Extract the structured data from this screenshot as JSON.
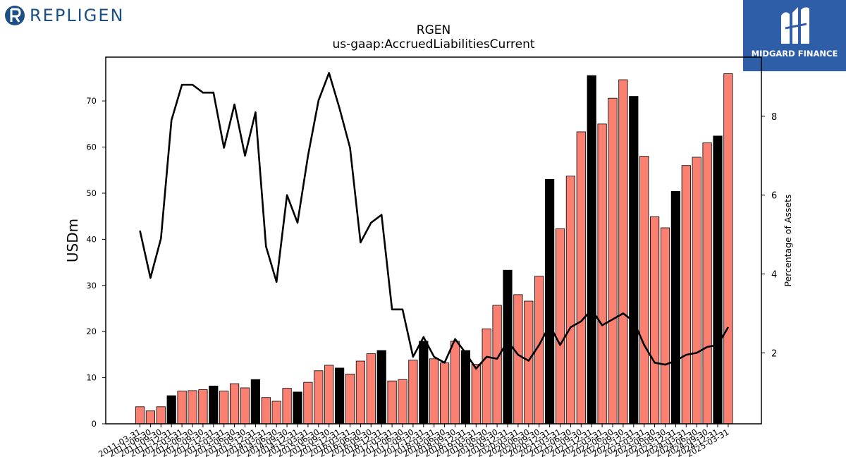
{
  "logos": {
    "left_text": "REPLIGEN",
    "right_text": "MIDGARD FINANCE"
  },
  "chart_data": {
    "type": "bar",
    "title": "RGEN",
    "subtitle": "us-gaap:AccruedLiabilitiesCurrent",
    "ylabel": "USDm",
    "y2label": "Percentage of Assets",
    "ylim": [
      0,
      79.5
    ],
    "y2lim": [
      0.2,
      9.5
    ],
    "yticks": [
      0,
      10,
      20,
      30,
      40,
      50,
      60,
      70
    ],
    "y2ticks": [
      2,
      4,
      6,
      8
    ],
    "colors": {
      "bar": "#fa8072",
      "bar_highlight": "#000000",
      "line": "#000000"
    },
    "categories": [
      "2011-03-31",
      "2011-06-30",
      "2011-09-30",
      "2011-12-31",
      "2012-03-31",
      "2012-06-30",
      "2012-09-30",
      "2012-12-31",
      "2013-03-31",
      "2013-06-30",
      "2013-09-30",
      "2013-12-31",
      "2014-03-31",
      "2014-06-30",
      "2014-09-30",
      "2014-12-31",
      "2015-03-31",
      "2015-06-30",
      "2015-09-30",
      "2015-12-31",
      "2016-03-31",
      "2016-06-30",
      "2016-09-30",
      "2016-12-31",
      "2017-03-31",
      "2017-06-30",
      "2017-09-30",
      "2017-12-31",
      "2018-03-31",
      "2018-06-30",
      "2018-09-30",
      "2018-12-31",
      "2019-03-31",
      "2019-06-30",
      "2019-09-30",
      "2019-12-31",
      "2020-03-31",
      "2020-06-30",
      "2020-09-30",
      "2020-12-31",
      "2021-03-31",
      "2021-06-30",
      "2021-09-30",
      "2021-12-31",
      "2022-03-31",
      "2022-06-30",
      "2022-09-30",
      "2022-12-31",
      "2023-03-31",
      "2023-06-30",
      "2023-09-30",
      "2023-12-31",
      "2024-03-31",
      "2024-06-30",
      "2024-09-30",
      "2024-12-31",
      "2025-03-31"
    ],
    "tick_labels": [
      "2011-03-31",
      "2011-06-30",
      "2011-09-30",
      "2011-12-31",
      "2012-03-31",
      "2012-06-30",
      "2012-09-30",
      "2012-12-31",
      "2013-03-31",
      "2013-06-30",
      "2013-09-30",
      "2013-12-31",
      "2014-03-31",
      "2014-06-30",
      "2014-09-30",
      "2014-12-31",
      "2015-03-31",
      "2015-06-30",
      "2015-09-30",
      "2015-12-31",
      "2016-03-31",
      "2016-06-30",
      "2016-09-30",
      "2016-12-31",
      "2017-03-31",
      "2017-06-30",
      "2017-09-30",
      "2017-12-31",
      "2018-03-31",
      "2018-06-30",
      "2018-09-30",
      "2018-12-31",
      "2019-03-31",
      "2019-06-30",
      "2019-09-30",
      "2019-12-31",
      "2020-03-31",
      "2020-06-30",
      "2020-09-30",
      "2020-12-31",
      "2021-03-31",
      "2021-06-30",
      "2021-09-30",
      "2021-12-31",
      "2022-03-31",
      "2022-06-30",
      "2022-09-30",
      "2022-12-31",
      "2023-03-31",
      "2023-06-30",
      "2023-09-30",
      "2023-12-31",
      "2024-03-31",
      "2024-06-30",
      "2024-09-30",
      "2024-12-31",
      "2025-03-31"
    ],
    "series": [
      {
        "name": "AccruedLiabilitiesCurrent (USDm)",
        "type": "bar",
        "values": [
          3.7,
          2.8,
          3.7,
          6.1,
          7.1,
          7.2,
          7.4,
          8.2,
          7.1,
          8.7,
          7.8,
          9.6,
          5.7,
          4.9,
          7.7,
          6.9,
          9.0,
          11.5,
          12.7,
          12.1,
          10.8,
          13.6,
          15.2,
          15.9,
          9.3,
          9.6,
          13.8,
          17.9,
          14.1,
          13.2,
          17.9,
          15.9,
          12.9,
          20.6,
          25.7,
          33.3,
          28.0,
          26.6,
          32.0,
          53.0,
          42.3,
          53.7,
          63.3,
          75.5,
          65.0,
          70.6,
          74.6,
          71.0,
          58.0,
          44.9,
          42.5,
          50.4,
          56.0,
          57.8,
          60.9,
          62.4,
          75.9
        ],
        "highlight": [
          false,
          false,
          false,
          true,
          false,
          false,
          false,
          true,
          false,
          false,
          false,
          true,
          false,
          false,
          false,
          true,
          false,
          false,
          false,
          true,
          false,
          false,
          false,
          true,
          false,
          false,
          false,
          true,
          false,
          false,
          false,
          true,
          false,
          false,
          false,
          true,
          false,
          false,
          false,
          true,
          false,
          false,
          false,
          true,
          false,
          false,
          false,
          true,
          false,
          false,
          false,
          true,
          false,
          false,
          false,
          true,
          false
        ]
      },
      {
        "name": "Percentage of Assets",
        "type": "line",
        "axis": "right",
        "values": [
          5.1,
          3.9,
          4.9,
          7.9,
          8.8,
          8.8,
          8.6,
          8.6,
          7.2,
          8.3,
          7.0,
          8.1,
          4.7,
          3.8,
          6.0,
          5.3,
          7.0,
          8.4,
          9.1,
          8.2,
          7.2,
          4.8,
          5.3,
          5.5,
          3.1,
          3.1,
          1.9,
          2.4,
          1.9,
          1.75,
          2.35,
          2.0,
          1.6,
          1.9,
          1.85,
          2.3,
          1.95,
          1.8,
          2.2,
          2.7,
          2.2,
          2.65,
          2.8,
          3.1,
          2.7,
          2.85,
          3.0,
          2.8,
          2.2,
          1.75,
          1.7,
          1.8,
          1.95,
          2.0,
          2.15,
          2.2,
          2.65
        ]
      }
    ]
  }
}
